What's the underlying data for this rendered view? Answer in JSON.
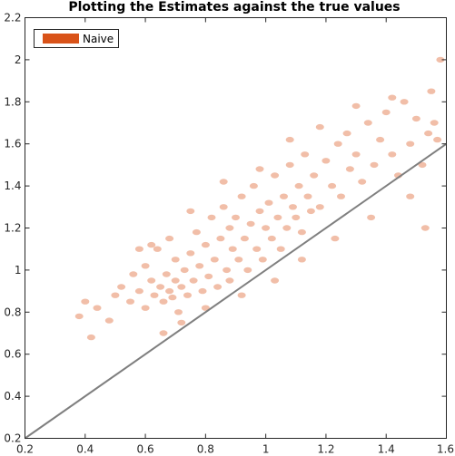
{
  "chart_data": {
    "type": "scatter",
    "title": "Plotting the Estimates against the true values",
    "xlabel": "",
    "ylabel": "",
    "xlim": [
      0.2,
      1.6
    ],
    "ylim": [
      0.2,
      2.2
    ],
    "x_ticks": [
      0.2,
      0.4,
      0.6,
      0.8,
      1,
      1.2,
      1.4,
      1.6
    ],
    "y_ticks": [
      0.2,
      0.4,
      0.6,
      0.8,
      1,
      1.2,
      1.4,
      1.6,
      1.8,
      2,
      2.2
    ],
    "x_tick_labels": [
      "0.2",
      "0.4",
      "0.6",
      "0.8",
      "1",
      "1.2",
      "1.4",
      "1.6"
    ],
    "y_tick_labels": [
      "0.2",
      "0.4",
      "0.6",
      "0.8",
      "1",
      "1.2",
      "1.4",
      "1.6",
      "1.8",
      "2",
      "2.2"
    ],
    "grid": false,
    "legend_position": "top-left",
    "series": [
      {
        "name": "Naive",
        "color": "#D95319",
        "x": [
          0.38,
          0.4,
          0.42,
          0.44,
          0.48,
          0.5,
          0.52,
          0.55,
          0.56,
          0.58,
          0.6,
          0.6,
          0.62,
          0.63,
          0.64,
          0.65,
          0.66,
          0.67,
          0.68,
          0.68,
          0.69,
          0.7,
          0.7,
          0.71,
          0.72,
          0.73,
          0.74,
          0.75,
          0.76,
          0.77,
          0.78,
          0.79,
          0.8,
          0.81,
          0.82,
          0.83,
          0.84,
          0.85,
          0.86,
          0.87,
          0.88,
          0.88,
          0.89,
          0.9,
          0.91,
          0.92,
          0.93,
          0.94,
          0.95,
          0.96,
          0.97,
          0.98,
          0.99,
          1.0,
          1.01,
          1.02,
          1.03,
          1.04,
          1.05,
          1.06,
          1.07,
          1.08,
          1.09,
          1.1,
          1.11,
          1.12,
          1.13,
          1.14,
          1.15,
          1.16,
          1.18,
          1.2,
          1.22,
          1.24,
          1.25,
          1.27,
          1.28,
          1.3,
          1.32,
          1.34,
          1.36,
          1.38,
          1.4,
          1.42,
          1.44,
          1.46,
          1.48,
          1.5,
          1.52,
          1.54,
          1.55,
          1.56,
          1.57,
          1.58,
          0.58,
          0.62,
          0.66,
          0.72,
          0.75,
          0.8,
          0.86,
          0.92,
          0.98,
          1.03,
          1.08,
          1.12,
          1.18,
          1.23,
          1.3,
          1.35,
          1.42,
          1.48,
          1.53
        ],
        "y": [
          0.78,
          0.85,
          0.68,
          0.82,
          0.76,
          0.88,
          0.92,
          0.85,
          0.98,
          0.9,
          0.82,
          1.02,
          0.95,
          0.88,
          1.1,
          0.92,
          0.85,
          0.98,
          0.9,
          1.15,
          0.87,
          0.95,
          1.05,
          0.8,
          0.92,
          1.0,
          0.88,
          1.08,
          0.95,
          1.18,
          1.02,
          0.9,
          1.12,
          0.97,
          1.25,
          1.05,
          0.92,
          1.15,
          1.3,
          1.0,
          1.2,
          0.95,
          1.1,
          1.25,
          1.05,
          1.35,
          1.15,
          1.0,
          1.22,
          1.4,
          1.1,
          1.28,
          1.05,
          1.2,
          1.32,
          1.15,
          1.45,
          1.25,
          1.1,
          1.35,
          1.2,
          1.5,
          1.3,
          1.25,
          1.4,
          1.18,
          1.55,
          1.35,
          1.28,
          1.45,
          1.3,
          1.52,
          1.4,
          1.6,
          1.35,
          1.65,
          1.48,
          1.55,
          1.42,
          1.7,
          1.5,
          1.62,
          1.75,
          1.55,
          1.45,
          1.8,
          1.6,
          1.72,
          1.5,
          1.65,
          1.85,
          1.7,
          1.62,
          2.0,
          1.1,
          1.12,
          0.7,
          0.75,
          1.28,
          0.82,
          1.42,
          0.88,
          1.48,
          0.95,
          1.62,
          1.05,
          1.68,
          1.15,
          1.78,
          1.25,
          1.82,
          1.35,
          1.2
        ]
      }
    ],
    "reference_line": {
      "x": [
        0.2,
        1.6
      ],
      "y": [
        0.2,
        1.6
      ],
      "color": "#7F7F7F"
    }
  }
}
